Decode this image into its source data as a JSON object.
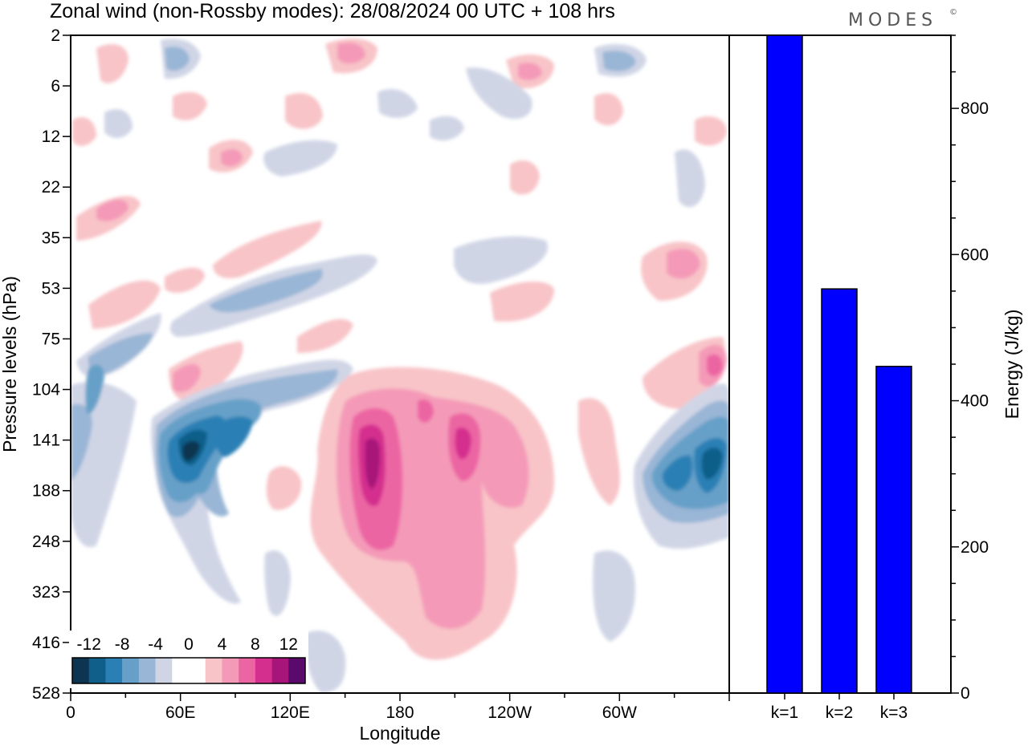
{
  "header": {
    "title": "Zonal wind (non-Rossby modes):  28/08/2024  00 UTC  + 108 hrs",
    "logo": "MODES",
    "logo_mark": "©"
  },
  "chart_data": [
    {
      "type": "heatmap",
      "xlabel": "Longitude",
      "ylabel": "Pressure levels (hPa)",
      "x_ticks": [
        "0",
        "60E",
        "120E",
        "180",
        "120W",
        "60W"
      ],
      "x_range_deg": [
        0,
        360
      ],
      "y_ticks": [
        "2",
        "6",
        "12",
        "22",
        "35",
        "53",
        "75",
        "104",
        "141",
        "188",
        "248",
        "323",
        "416",
        "528"
      ],
      "y_range_hpa": [
        2,
        528
      ],
      "colorbar": {
        "labels": [
          "-12",
          "-8",
          "-4",
          "0",
          "4",
          "8",
          "12"
        ],
        "colors": [
          "#0d3450",
          "#0f5f8a",
          "#2a80b5",
          "#66a0c8",
          "#9ab6d6",
          "#d0d5e6",
          "#ffffff",
          "#ffffff",
          "#f8c4c8",
          "#f49ab8",
          "#ec65a3",
          "#d42e8e",
          "#a8157a",
          "#5a0a6a"
        ]
      },
      "features": [
        {
          "lon": 60,
          "p": 141,
          "value": -14
        },
        {
          "lon": 75,
          "p": 148,
          "value": -10
        },
        {
          "lon": 20,
          "p": 120,
          "value": -6
        },
        {
          "lon": 300,
          "p": 175,
          "value": -10
        },
        {
          "lon": 340,
          "p": 160,
          "value": -12
        },
        {
          "lon": 165,
          "p": 150,
          "value": 14
        },
        {
          "lon": 200,
          "p": 150,
          "value": 10
        },
        {
          "lon": 350,
          "p": 95,
          "value": 8
        },
        {
          "lon": 60,
          "p": 112,
          "value": 6
        },
        {
          "lon": 150,
          "p": 6,
          "value": 6
        }
      ]
    },
    {
      "type": "bar",
      "categories": [
        "k=1",
        "k=2",
        "k=3"
      ],
      "values": [
        900,
        553,
        447
      ],
      "ylabel": "Energy (J/kg)",
      "y_ticks": [
        "0",
        "200",
        "400",
        "600",
        "800"
      ],
      "ylim": [
        0,
        900
      ],
      "bar_color": "#0000ff"
    }
  ]
}
